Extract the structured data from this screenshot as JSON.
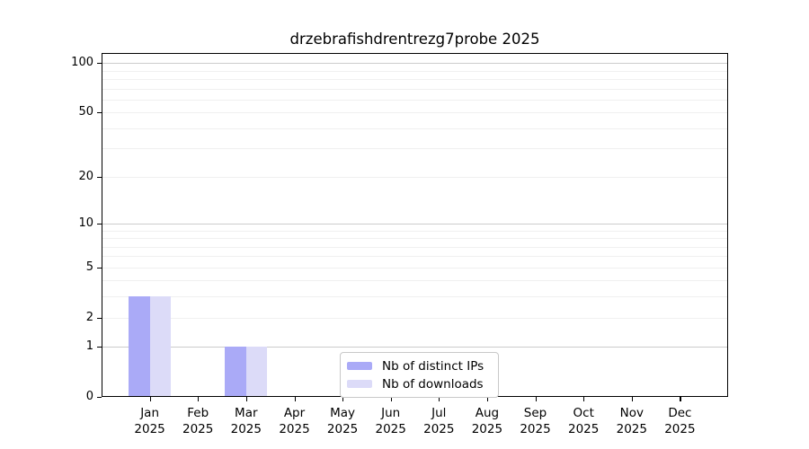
{
  "chart_data": {
    "type": "bar",
    "title": "drzebrafishdrentrezg7probe 2025",
    "x_categories": [
      "Jan",
      "Feb",
      "Mar",
      "Apr",
      "May",
      "Jun",
      "Jul",
      "Aug",
      "Sep",
      "Oct",
      "Nov",
      "Dec"
    ],
    "x_sub_label": "2025",
    "series": [
      {
        "name": "Nb of distinct IPs",
        "color": "#aaaaf7",
        "values": [
          3,
          0,
          1,
          0,
          0,
          0,
          0,
          0,
          0,
          0,
          0,
          0
        ]
      },
      {
        "name": "Nb of downloads",
        "color": "#dcdbf8",
        "values": [
          3,
          0,
          1,
          0,
          0,
          0,
          0,
          0,
          0,
          0,
          0,
          0
        ]
      }
    ],
    "y_scale": "log1p",
    "y_ticks": [
      0,
      1,
      2,
      5,
      10,
      20,
      50,
      100
    ],
    "y_max": 115,
    "ylim": [
      0,
      115
    ],
    "grid": {
      "major_values": [
        1,
        10,
        100
      ],
      "minor_values": [
        2,
        3,
        4,
        5,
        6,
        7,
        8,
        9,
        20,
        30,
        40,
        50,
        60,
        70,
        80,
        90
      ],
      "major_color": "#cccccc",
      "minor_color": "#f0f0f0"
    },
    "legend": {
      "position": "bottom-center",
      "entries": [
        "Nb of distinct IPs",
        "Nb of downloads"
      ]
    },
    "axis_color": "#000000"
  }
}
